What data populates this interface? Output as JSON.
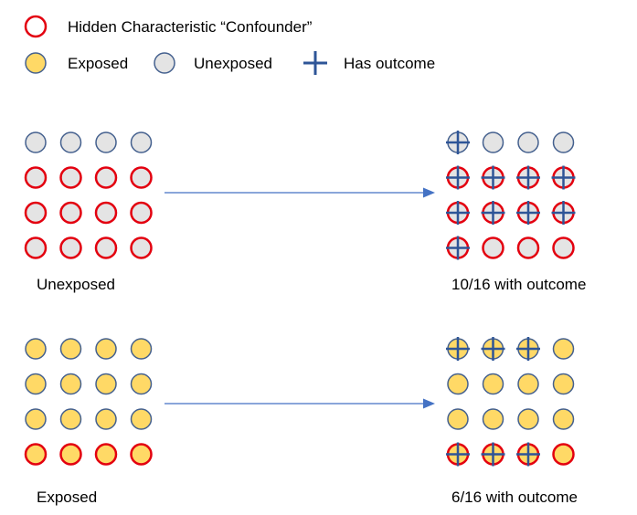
{
  "legend": {
    "confounder_label": "Hidden Characteristic “Confounder”",
    "exposed_label": "Exposed",
    "unexposed_label": "Unexposed",
    "outcome_label": "Has outcome"
  },
  "panels": [
    {
      "group_label": "Unexposed",
      "result_label": "10/16 with outcome",
      "exposed": false,
      "before": [
        [
          0,
          0,
          0,
          0
        ],
        [
          1,
          1,
          1,
          1
        ],
        [
          1,
          1,
          1,
          1
        ],
        [
          1,
          1,
          1,
          1
        ]
      ],
      "confounder_after": [
        [
          0,
          0,
          0,
          0
        ],
        [
          1,
          1,
          1,
          1
        ],
        [
          1,
          1,
          1,
          1
        ],
        [
          1,
          1,
          1,
          1
        ]
      ],
      "outcome_after": [
        [
          1,
          0,
          0,
          0
        ],
        [
          1,
          1,
          1,
          1
        ],
        [
          1,
          1,
          1,
          1
        ],
        [
          1,
          0,
          0,
          0
        ]
      ]
    },
    {
      "group_label": "Exposed",
      "result_label": "6/16 with outcome",
      "exposed": true,
      "before": [
        [
          0,
          0,
          0,
          0
        ],
        [
          0,
          0,
          0,
          0
        ],
        [
          0,
          0,
          0,
          0
        ],
        [
          1,
          1,
          1,
          1
        ]
      ],
      "confounder_after": [
        [
          0,
          0,
          0,
          0
        ],
        [
          0,
          0,
          0,
          0
        ],
        [
          0,
          0,
          0,
          0
        ],
        [
          1,
          1,
          1,
          1
        ]
      ],
      "outcome_after": [
        [
          1,
          1,
          1,
          0
        ],
        [
          0,
          0,
          0,
          0
        ],
        [
          0,
          0,
          0,
          0
        ],
        [
          1,
          1,
          1,
          0
        ]
      ]
    }
  ],
  "colors": {
    "confounder_ring": "#e3000f",
    "normal_ring": "#44608e",
    "exposed_fill": "#ffd966",
    "unexposed_fill": "#e4e4e4",
    "plus": "#2e5597",
    "arrow": "#4472c4"
  }
}
